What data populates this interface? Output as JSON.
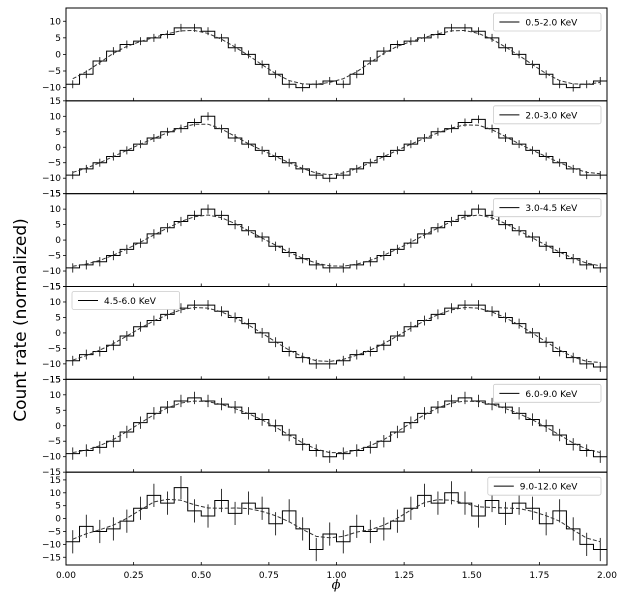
{
  "chart_data": {
    "type": "line",
    "ylabel": "Count rate (normalized)",
    "xlabel": "ϕ",
    "xlim": [
      0.0,
      2.0
    ],
    "xticks": [
      "0.00",
      "0.25",
      "0.50",
      "0.75",
      "1.00",
      "1.25",
      "1.50",
      "1.75",
      "2.00"
    ],
    "yticks": [
      -15,
      -10,
      -5,
      0,
      5,
      10,
      15
    ],
    "bins_per_cycle": 20,
    "panels": [
      {
        "label": "0.5-2.0 KeV",
        "legend_pos": "top-right",
        "ylim": [
          -14,
          14
        ],
        "values": [
          -9,
          -6,
          -2,
          1,
          3,
          4,
          5,
          6,
          8,
          8,
          7,
          5,
          2,
          0,
          -3,
          -6,
          -9,
          -10,
          -9,
          -8,
          -9,
          -6,
          -2,
          1,
          3,
          4,
          5,
          6,
          8,
          8,
          7,
          5,
          2,
          0,
          -3,
          -6,
          -9,
          -10,
          -9,
          -8
        ],
        "err": 1.2
      },
      {
        "label": "2.0-3.0 KeV",
        "legend_pos": "top-right",
        "ylim": [
          -15,
          15
        ],
        "values": [
          -9,
          -7,
          -5,
          -3,
          -1,
          1,
          3,
          5,
          6,
          8,
          10,
          6,
          3,
          1,
          -1,
          -3,
          -5,
          -7,
          -9,
          -10,
          -9,
          -7,
          -5,
          -3,
          -1,
          1,
          3,
          5,
          6,
          8,
          9,
          6,
          3,
          1,
          -1,
          -3,
          -5,
          -7,
          -9,
          -9
        ],
        "err": 1.3
      },
      {
        "label": "3.0-4.5 KeV",
        "legend_pos": "top-right",
        "ylim": [
          -15,
          15
        ],
        "values": [
          -9,
          -8,
          -7,
          -5,
          -3,
          -1,
          2,
          4,
          6,
          8,
          10,
          8,
          5,
          3,
          1,
          -2,
          -4,
          -6,
          -8,
          -9,
          -9,
          -8,
          -7,
          -5,
          -3,
          -1,
          2,
          4,
          6,
          8,
          10,
          8,
          5,
          3,
          1,
          -2,
          -4,
          -6,
          -8,
          -9
        ],
        "err": 1.5
      },
      {
        "label": "4.5-6.0 KeV",
        "legend_pos": "top-left",
        "ylim": [
          -15,
          15
        ],
        "values": [
          -9,
          -7,
          -6,
          -4,
          -1,
          2,
          4,
          6,
          8,
          9,
          9,
          7,
          5,
          3,
          0,
          -3,
          -6,
          -8,
          -10,
          -10,
          -9,
          -7,
          -6,
          -4,
          -1,
          2,
          4,
          6,
          8,
          9,
          9,
          7,
          5,
          3,
          0,
          -3,
          -6,
          -8,
          -10,
          -11
        ],
        "err": 1.6
      },
      {
        "label": "6.0-9.0 KeV",
        "legend_pos": "top-right",
        "ylim": [
          -15,
          15
        ],
        "values": [
          -9,
          -8,
          -7,
          -5,
          -2,
          1,
          4,
          6,
          8,
          9,
          8,
          7,
          6,
          4,
          2,
          0,
          -3,
          -6,
          -8,
          -10,
          -9,
          -8,
          -7,
          -5,
          -2,
          1,
          4,
          6,
          8,
          9,
          8,
          7,
          6,
          4,
          2,
          0,
          -3,
          -6,
          -8,
          -10
        ],
        "err": 2.0
      },
      {
        "label": "9.0-12.0 KeV",
        "legend_pos": "top-right",
        "ylim": [
          -18,
          18
        ],
        "values": [
          -9,
          -3,
          -5,
          -4,
          -1,
          4,
          9,
          6,
          12,
          3,
          1,
          7,
          2,
          6,
          4,
          -2,
          3,
          -4,
          -12,
          -6,
          -9,
          -3,
          -5,
          -4,
          -1,
          4,
          9,
          6,
          10,
          6,
          1,
          7,
          2,
          6,
          4,
          -2,
          3,
          -4,
          -10,
          -12
        ],
        "err": 4.5
      }
    ]
  }
}
